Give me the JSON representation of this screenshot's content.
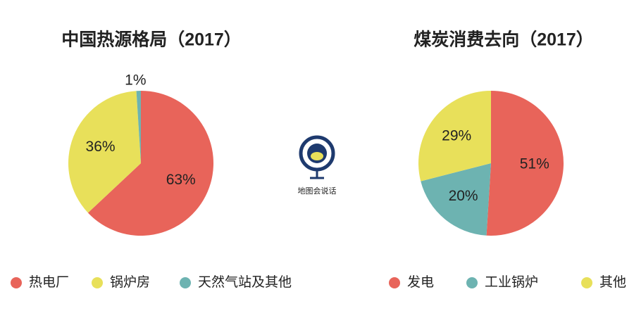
{
  "chart_data": [
    {
      "type": "pie",
      "title": "中国热源格局（2017）",
      "categories": [
        "热电厂",
        "锅炉房",
        "天然气站及其他"
      ],
      "values": [
        63,
        36,
        1
      ],
      "value_labels": [
        "63%",
        "36%",
        "1%"
      ],
      "colors": [
        "#e8645a",
        "#e8e05a",
        "#6db3b1"
      ]
    },
    {
      "type": "pie",
      "title": "煤炭消费去向（2017）",
      "categories": [
        "发电",
        "工业锅炉",
        "其他"
      ],
      "values": [
        51,
        20,
        29
      ],
      "value_labels": [
        "51%",
        "20%",
        "29%"
      ],
      "colors": [
        "#e8645a",
        "#6db3b1",
        "#e8e05a"
      ]
    }
  ],
  "logo": {
    "text": "地图会说话"
  }
}
